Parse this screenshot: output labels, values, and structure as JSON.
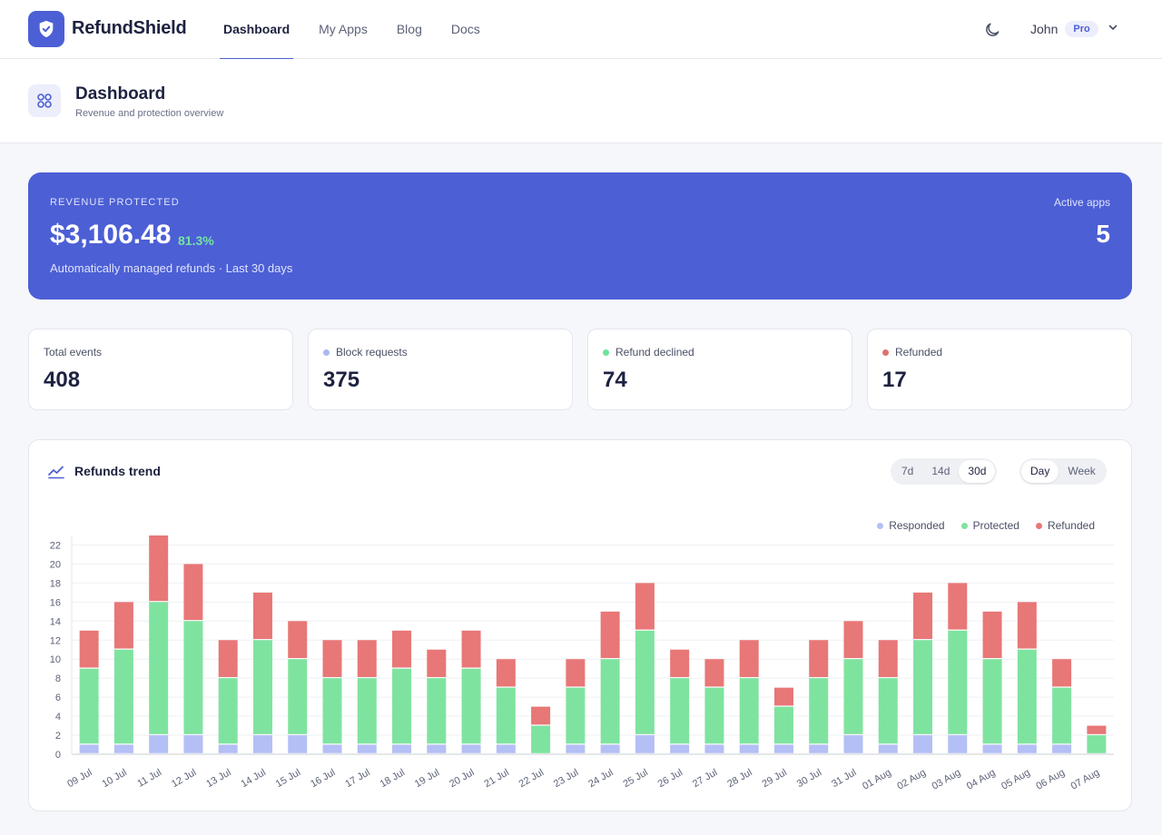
{
  "app": {
    "brand": "RefundShield",
    "nav": [
      {
        "label": "Dashboard",
        "active": true
      },
      {
        "label": "My Apps",
        "active": false
      },
      {
        "label": "Blog",
        "active": false
      },
      {
        "label": "Docs",
        "active": false
      }
    ],
    "user": {
      "name": "John",
      "plan": "Pro"
    },
    "icons": {
      "logo": "shield-check-icon",
      "theme": "moon-icon",
      "menu": "chevron-down-icon"
    }
  },
  "page": {
    "title": "Dashboard",
    "subtitle": "Revenue and protection overview",
    "icon": "grid-icon"
  },
  "hero": {
    "label": "REVENUE PROTECTED",
    "amount": "$3,106.48",
    "percent": "81.3%",
    "subtitle": "Automatically managed refunds · Last 30 days",
    "active_label": "Active apps",
    "active_value": "5",
    "color": "#4c5fd5",
    "percent_color": "#74e3a2"
  },
  "stats": [
    {
      "label": "Total events",
      "value": "408",
      "dot": null
    },
    {
      "label": "Block requests",
      "value": "375",
      "dot": "#a9b8f0"
    },
    {
      "label": "Refund declined",
      "value": "74",
      "dot": "#6ee39b"
    },
    {
      "label": "Refunded",
      "value": "17",
      "dot": "#e06f6f"
    }
  ],
  "trend": {
    "title": "Refunds trend",
    "icon": "trend-line-icon",
    "ranges": [
      {
        "label": "7d",
        "active": false
      },
      {
        "label": "14d",
        "active": false
      },
      {
        "label": "30d",
        "active": true
      }
    ],
    "grains": [
      {
        "label": "Day",
        "active": true
      },
      {
        "label": "Week",
        "active": false
      }
    ]
  },
  "chart_data": {
    "type": "bar",
    "stacked": true,
    "categories": [
      "09 Jul",
      "10 Jul",
      "11 Jul",
      "12 Jul",
      "13 Jul",
      "14 Jul",
      "15 Jul",
      "16 Jul",
      "17 Jul",
      "18 Jul",
      "19 Jul",
      "20 Jul",
      "21 Jul",
      "22 Jul",
      "23 Jul",
      "24 Jul",
      "25 Jul",
      "26 Jul",
      "27 Jul",
      "28 Jul",
      "29 Jul",
      "30 Jul",
      "31 Jul",
      "01 Aug",
      "02 Aug",
      "03 Aug",
      "04 Aug",
      "05 Aug",
      "06 Aug",
      "07 Aug"
    ],
    "series": [
      {
        "name": "Responded",
        "color": "#b4bff5",
        "values": [
          1,
          1,
          2,
          2,
          1,
          2,
          2,
          1,
          1,
          1,
          1,
          1,
          1,
          0,
          1,
          1,
          2,
          1,
          1,
          1,
          1,
          1,
          2,
          1,
          2,
          2,
          1,
          1,
          1,
          0
        ]
      },
      {
        "name": "Protected",
        "color": "#7fe3a0",
        "values": [
          8,
          10,
          14,
          12,
          7,
          10,
          8,
          7,
          7,
          8,
          7,
          8,
          6,
          3,
          6,
          9,
          11,
          7,
          6,
          7,
          4,
          7,
          8,
          7,
          10,
          11,
          9,
          10,
          6,
          2
        ]
      },
      {
        "name": "Refunded",
        "color": "#e87777",
        "values": [
          4,
          5,
          7,
          6,
          4,
          5,
          4,
          4,
          4,
          4,
          3,
          4,
          3,
          2,
          3,
          5,
          5,
          3,
          3,
          4,
          2,
          4,
          4,
          4,
          5,
          5,
          5,
          5,
          3,
          1
        ]
      }
    ],
    "yticks": [
      0,
      2,
      4,
      6,
      8,
      10,
      12,
      14,
      16,
      18,
      20,
      22
    ],
    "ylim": [
      0,
      23
    ],
    "grid": true,
    "legend": "top-right",
    "title": "",
    "xlabel": "",
    "ylabel": ""
  }
}
